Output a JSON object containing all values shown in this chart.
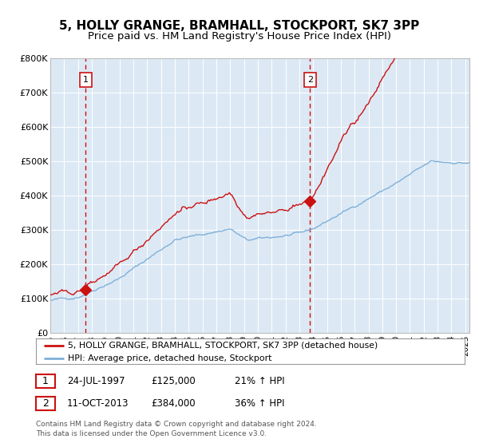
{
  "title": "5, HOLLY GRANGE, BRAMHALL, STOCKPORT, SK7 3PP",
  "subtitle": "Price paid vs. HM Land Registry's House Price Index (HPI)",
  "title_fontsize": 11,
  "subtitle_fontsize": 9.5,
  "background_color": "#dce9f5",
  "fig_background": "#ffffff",
  "ylim": [
    0,
    800000
  ],
  "xlim_start": 1995.0,
  "xlim_end": 2025.3,
  "hpi_color": "#7fb0d8",
  "price_color": "#cc1111",
  "purchase1_date": 1997.56,
  "purchase1_price": 125000,
  "purchase2_date": 2013.78,
  "purchase2_price": 384000,
  "legend_label1": "5, HOLLY GRANGE, BRAMHALL, STOCKPORT, SK7 3PP (detached house)",
  "legend_label2": "HPI: Average price, detached house, Stockport",
  "annotation1_label": "1",
  "annotation1_date": "24-JUL-1997",
  "annotation1_price": "£125,000",
  "annotation1_hpi": "21% ↑ HPI",
  "annotation2_label": "2",
  "annotation2_date": "11-OCT-2013",
  "annotation2_price": "£384,000",
  "annotation2_hpi": "36% ↑ HPI",
  "footnote": "Contains HM Land Registry data © Crown copyright and database right 2024.\nThis data is licensed under the Open Government Licence v3.0.",
  "yticks": [
    0,
    100000,
    200000,
    300000,
    400000,
    500000,
    600000,
    700000,
    800000
  ],
  "ytick_labels": [
    "£0",
    "£100K",
    "£200K",
    "£300K",
    "£400K",
    "£500K",
    "£600K",
    "£700K",
    "£800K"
  ]
}
